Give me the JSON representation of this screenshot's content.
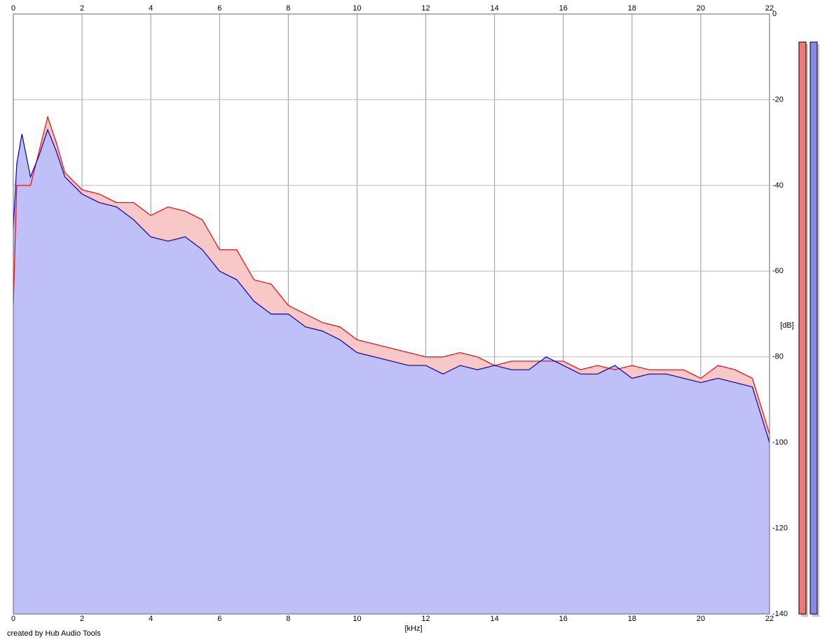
{
  "chart_data": {
    "type": "line",
    "x_label": "[kHz]",
    "y_label": "[dB]",
    "credit": "created by Hub Audio Tools",
    "x": [
      0,
      0.1,
      0.25,
      0.5,
      0.75,
      1,
      1.25,
      1.5,
      2,
      2.5,
      3,
      3.5,
      4,
      4.5,
      5,
      5.5,
      6,
      6.5,
      7,
      7.5,
      8,
      8.5,
      9,
      9.5,
      10,
      10.5,
      11,
      11.5,
      12,
      12.5,
      13,
      13.5,
      14,
      14.5,
      15,
      15.5,
      16,
      16.5,
      17,
      17.5,
      18,
      18.5,
      19,
      19.5,
      20,
      20.5,
      21,
      21.5,
      22
    ],
    "series": [
      {
        "color": "#ff0000",
        "fill": "#f8c8c8",
        "values": [
          -68,
          -40,
          -40,
          -40,
          -32,
          -24,
          -30,
          -37,
          -41,
          -42,
          -44,
          -44,
          -47,
          -45,
          -46,
          -48,
          -55,
          -55,
          -62,
          -63,
          -68,
          -70,
          -72,
          -73,
          -76,
          -77,
          -78,
          -79,
          -80,
          -80,
          -79,
          -80,
          -82,
          -81,
          -81,
          -81,
          -81,
          -83,
          -82,
          -83,
          -82,
          -83,
          -83,
          -83,
          -85,
          -82,
          -83,
          -85,
          -98
        ]
      },
      {
        "color": "#0000c0",
        "fill": "#c0c0f8",
        "values": [
          -50,
          -35,
          -28,
          -38,
          -33,
          -27,
          -32,
          -38,
          -42,
          -44,
          -45,
          -48,
          -52,
          -53,
          -52,
          -55,
          -60,
          -62,
          -67,
          -70,
          -70,
          -73,
          -74,
          -76,
          -79,
          -80,
          -81,
          -82,
          -82,
          -84,
          -82,
          -83,
          -82,
          -83,
          -83,
          -80,
          -82,
          -84,
          -84,
          -82,
          -85,
          -84,
          -84,
          -85,
          -86,
          -85,
          -86,
          -87,
          -100
        ]
      }
    ],
    "xlim": [
      0,
      22
    ],
    "xticks": [
      0,
      2,
      4,
      6,
      8,
      10,
      12,
      14,
      16,
      18,
      20,
      22
    ],
    "ylim": [
      -140,
      0
    ],
    "yticks": [
      0,
      -20,
      -40,
      -60,
      -80,
      -100,
      -120,
      -140
    ],
    "grid": true
  }
}
